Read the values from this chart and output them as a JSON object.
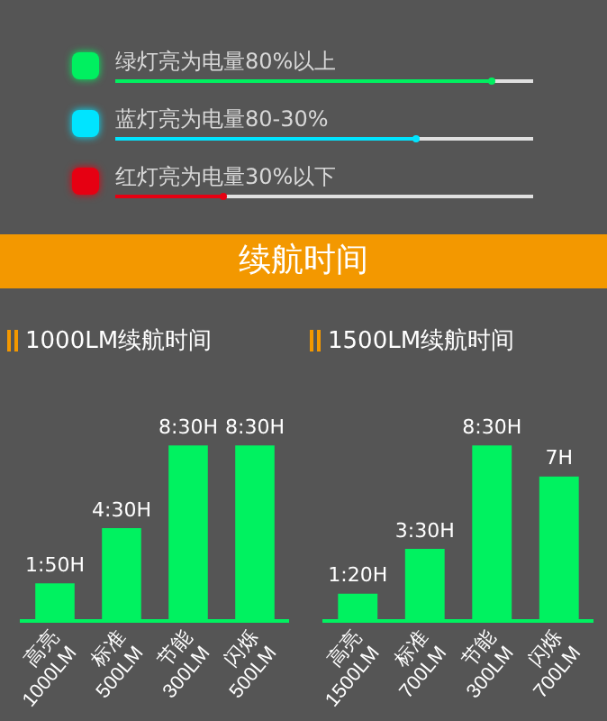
{
  "chart_data": [
    {
      "type": "other",
      "annotations": [
        "绿灯亮为电量80%以上",
        "蓝灯亮为电量80-30%",
        "红灯亮为电量30%以下"
      ]
    },
    {
      "type": "other",
      "title": "续航时间"
    },
    {
      "type": "bar",
      "title": "1000LM续航时间",
      "categories": [
        "高亮\n1000LM",
        "标准\n500LM",
        "节能\n300LM",
        "闪烁\n500LM"
      ],
      "values": [
        1.83,
        4.5,
        8.5,
        8.5
      ],
      "value_labels": [
        "1:50H",
        "4:30H",
        "8:30H",
        "8:30H"
      ],
      "color": "#00f260",
      "grid": false
    },
    {
      "type": "bar",
      "title": "1500LM续航时间",
      "categories": [
        "高亮\n1500LM",
        "标准\n700LM",
        "节能\n300LM",
        "闪烁\n700LM"
      ],
      "values": [
        1.33,
        3.5,
        8.5,
        7
      ],
      "value_labels": [
        "1:20H",
        "3:30H",
        "8:30H",
        "7H"
      ],
      "color": "#00f260",
      "grid": false
    }
  ]
}
